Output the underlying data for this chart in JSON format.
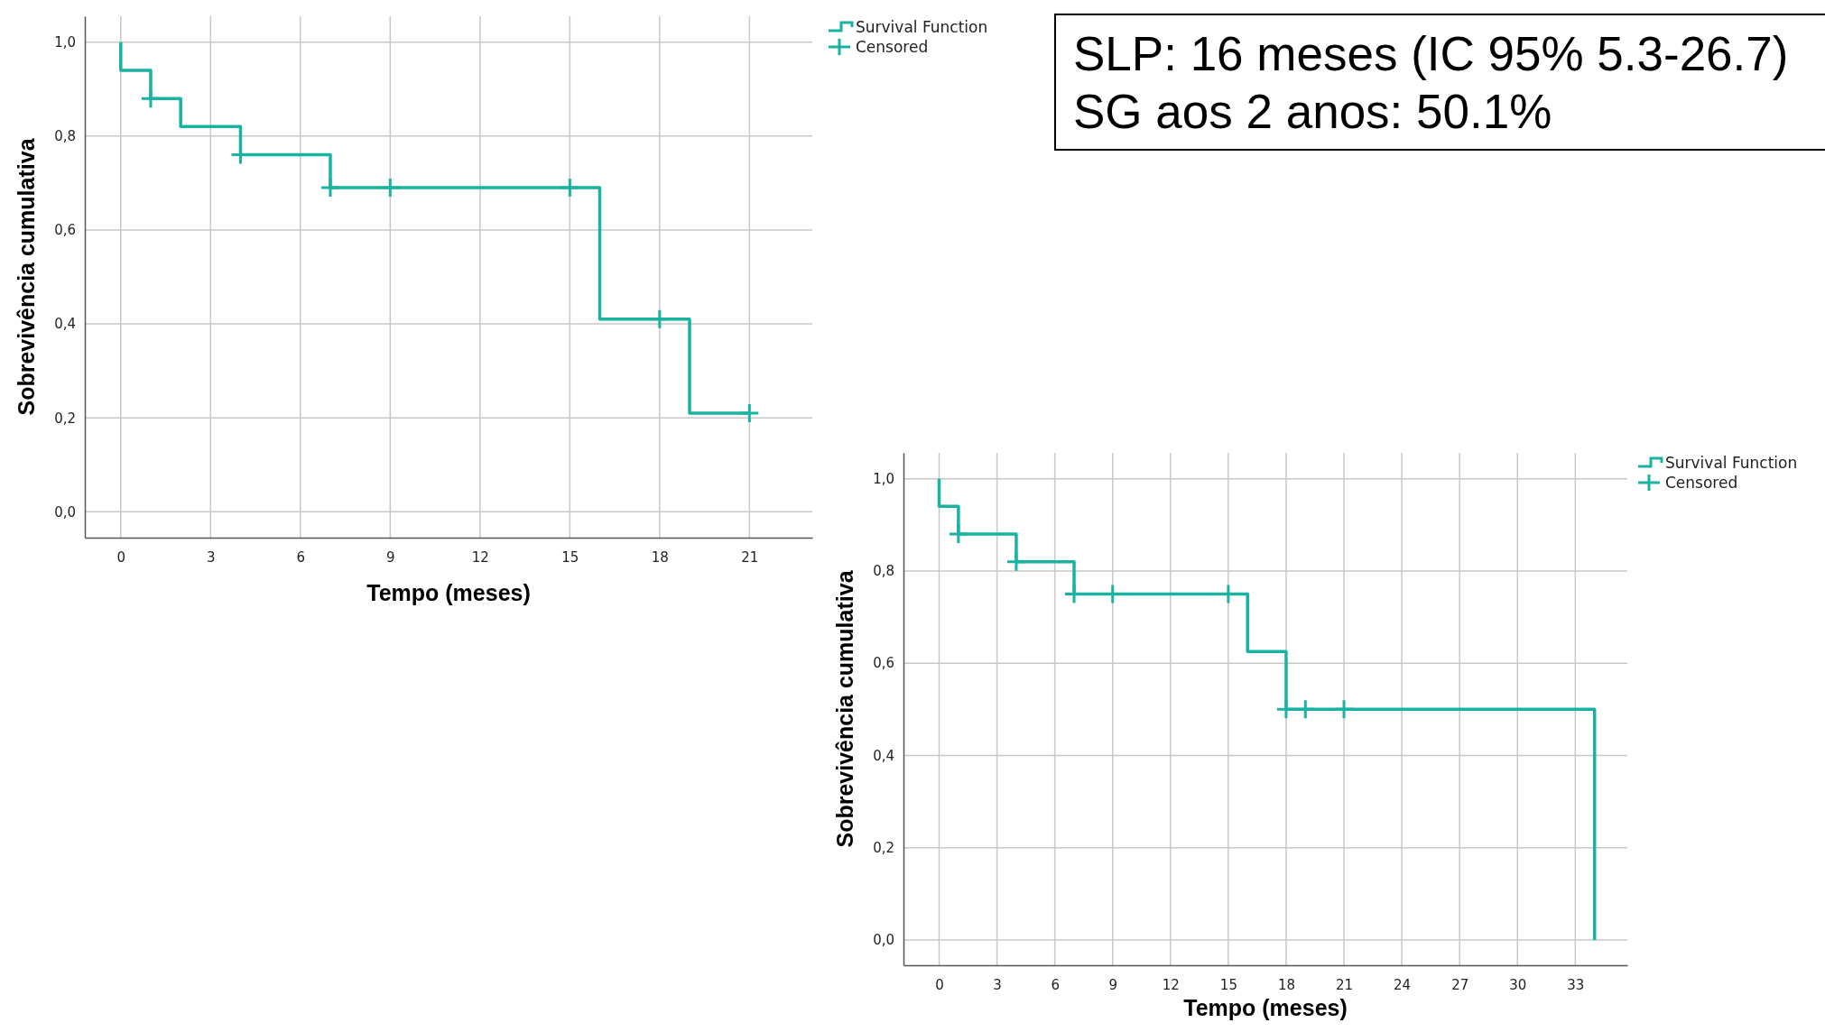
{
  "chart_data": [
    {
      "type": "step",
      "xlabel": "Tempo (meses)",
      "ylabel": "Sobrevivência cumulativa",
      "xlim": [
        -1.2,
        23.1
      ],
      "ylim": [
        -0.055,
        1.055
      ],
      "xticks": [
        0,
        3,
        6,
        9,
        12,
        15,
        18,
        21
      ],
      "yticks": [
        {
          "value": 0,
          "label": "0,0"
        },
        {
          "value": 0.2,
          "label": "0,2"
        },
        {
          "value": 0.4,
          "label": "0,4"
        },
        {
          "value": 0.6,
          "label": "0,6"
        },
        {
          "value": 0.8,
          "label": "0,8"
        },
        {
          "value": 1,
          "label": "1,0"
        }
      ],
      "grid": true,
      "legend": "top right",
      "series": [
        {
          "name": "Survival Function",
          "type": "step",
          "color": "#1ab39f",
          "x": [
            0,
            0,
            1,
            2,
            4,
            7,
            16,
            19,
            21
          ],
          "values": [
            1,
            0.94,
            0.88,
            0.82,
            0.76,
            0.69,
            0.41,
            0.21,
            0.21
          ]
        },
        {
          "name": "Censored",
          "type": "scatter",
          "marker": "cross",
          "color": "#1ab39f",
          "x": [
            1,
            4,
            7,
            9,
            15,
            18,
            21
          ],
          "values": [
            0.88,
            0.76,
            0.69,
            0.69,
            0.69,
            0.41,
            0.21
          ]
        }
      ]
    },
    {
      "type": "other",
      "annotations": [
        "SLP: 16 meses (IC 95% 5.3-26.7)",
        "SG aos 2 anos: 50.1%"
      ]
    },
    {
      "type": "step",
      "xlabel": "Tempo (meses)",
      "ylabel": "Sobrevivência cumulativa",
      "xlim": [
        -1.85,
        35.7
      ],
      "ylim": [
        -0.055,
        1.056
      ],
      "xticks": [
        0,
        3,
        6,
        9,
        12,
        15,
        18,
        21,
        24,
        27,
        30,
        33
      ],
      "yticks": [
        {
          "value": 0,
          "label": "0,0"
        },
        {
          "value": 0.2,
          "label": "0,2"
        },
        {
          "value": 0.4,
          "label": "0,4"
        },
        {
          "value": 0.6,
          "label": "0,6"
        },
        {
          "value": 0.8,
          "label": "0,8"
        },
        {
          "value": 1,
          "label": "1,0"
        }
      ],
      "grid": true,
      "legend": "top right",
      "series": [
        {
          "name": "Survival Function",
          "type": "step",
          "color": "#1ab39f",
          "x": [
            0,
            0,
            1,
            4,
            7,
            16,
            18,
            34,
            34
          ],
          "values": [
            1,
            0.94,
            0.88,
            0.82,
            0.75,
            0.625,
            0.5,
            0.5,
            0
          ]
        },
        {
          "name": "Censored",
          "type": "scatter",
          "marker": "cross",
          "color": "#1ab39f",
          "x": [
            1,
            4,
            7,
            9,
            15,
            18,
            19,
            21
          ],
          "values": [
            0.88,
            0.82,
            0.75,
            0.75,
            0.75,
            0.5,
            0.5,
            0.5
          ]
        }
      ]
    }
  ]
}
